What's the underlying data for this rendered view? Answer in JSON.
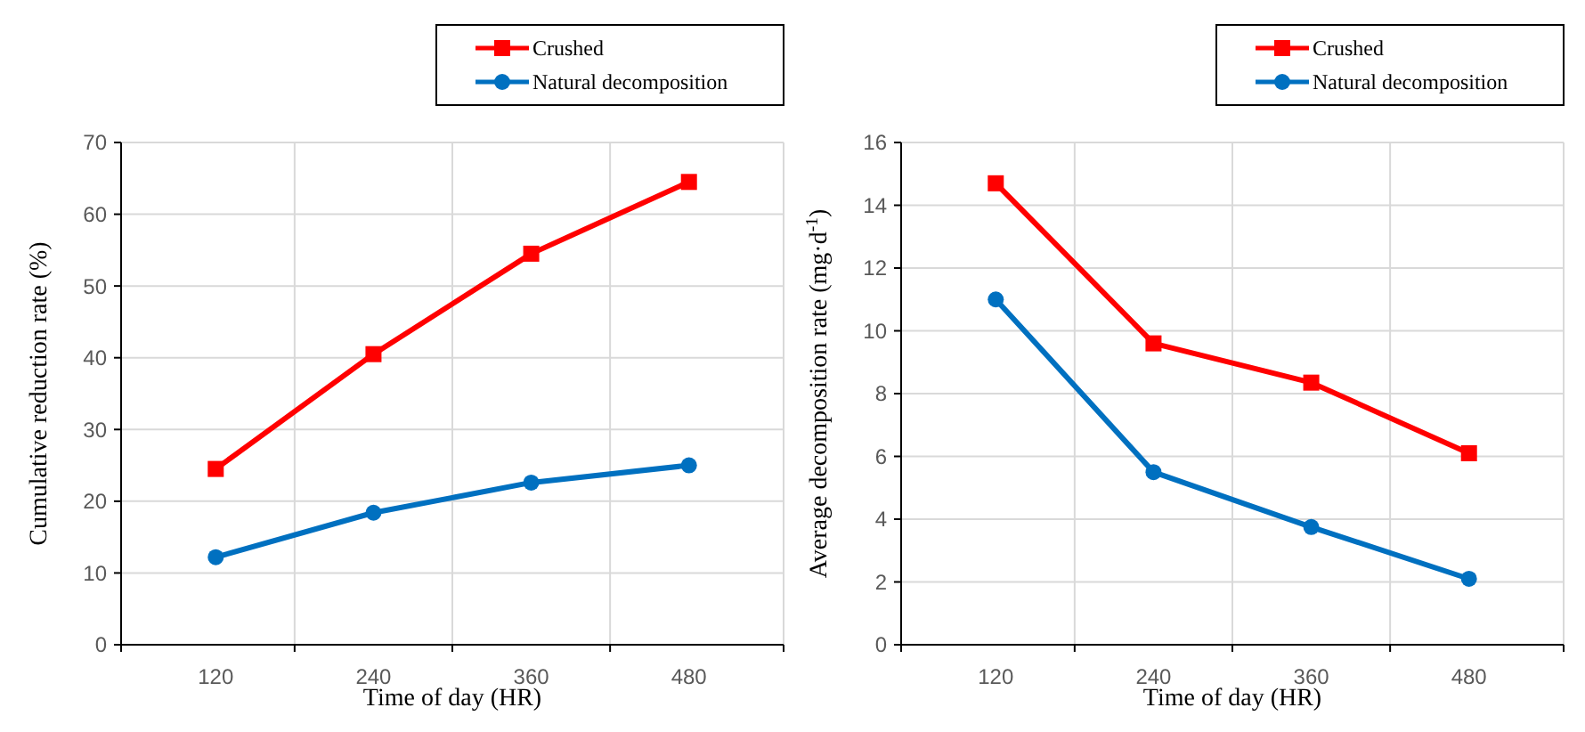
{
  "chart_data": [
    {
      "type": "line",
      "xlabel": "Time of day (HR)",
      "ylabel": "Cumulative reduction rate (%)",
      "categories": [
        "120",
        "240",
        "360",
        "480"
      ],
      "series": [
        {
          "name": "Crushed",
          "color": "#ff0000",
          "marker": "square",
          "values": [
            24.5,
            40.5,
            54.5,
            64.5
          ]
        },
        {
          "name": "Natural decomposition",
          "color": "#0070c0",
          "marker": "circle",
          "values": [
            12.2,
            18.4,
            22.6,
            25.0
          ]
        }
      ],
      "ylim": [
        0,
        70
      ],
      "yticks": [
        0,
        10,
        20,
        30,
        40,
        50,
        60,
        70
      ],
      "grid": true,
      "legend": "top right"
    },
    {
      "type": "line",
      "xlabel": "Time of day (HR)",
      "ylabel": "Average decomposition rate (mg·d$^{-1}$)",
      "categories": [
        "120",
        "240",
        "360",
        "480"
      ],
      "series": [
        {
          "name": "Crushed",
          "color": "#ff0000",
          "marker": "square",
          "values": [
            14.7,
            9.6,
            8.35,
            6.1
          ]
        },
        {
          "name": "Natural decomposition",
          "color": "#0070c0",
          "marker": "circle",
          "values": [
            11.0,
            5.5,
            3.75,
            2.1
          ]
        }
      ],
      "ylim": [
        0,
        16
      ],
      "yticks": [
        0,
        2,
        4,
        6,
        8,
        10,
        12,
        14,
        16
      ],
      "grid": true,
      "legend": "top right"
    }
  ]
}
